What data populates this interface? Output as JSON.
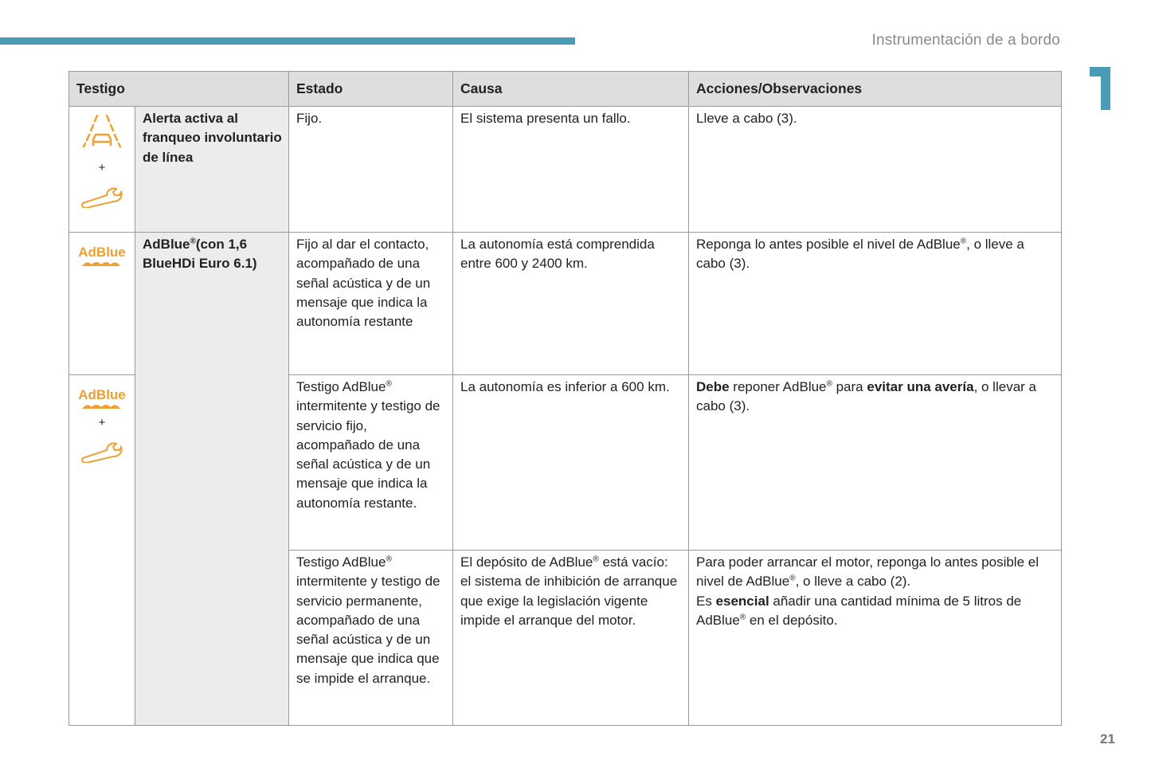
{
  "header": {
    "section_title": "Instrumentación de a bordo",
    "chapter_number": "1",
    "page_number": "21",
    "accent_color": "#4a9bb6",
    "icon_color": "#f0a030"
  },
  "table": {
    "columns": [
      "Testigo",
      "Estado",
      "Causa",
      "Acciones/Observaciones"
    ],
    "plus": "+",
    "reg": "®",
    "icons": {
      "adblue_label": "AdBlue",
      "lane": "lane-departure-icon",
      "wrench": "wrench-icon"
    },
    "row1": {
      "name": "Alerta activa al franqueo involuntario de línea",
      "estado": "Fijo.",
      "causa": "El sistema presenta un fallo.",
      "acciones": "Lleve a cabo (3)."
    },
    "adblue": {
      "name_a": "AdBlue",
      "name_b": "(con 1,6 BlueHDi Euro 6.1)"
    },
    "row2": {
      "estado": "Fijo al dar el contacto, acompañado de una señal acústica y de un mensaje que indica la autonomía restante",
      "causa": "La autonomía está comprendida entre 600 y 2400 km.",
      "acciones_a": "Reponga lo antes posible el nivel de AdBlue",
      "acciones_b": ", o lleve a cabo (3)."
    },
    "row3": {
      "estado_a": "Testigo AdBlue",
      "estado_b": " intermitente y testigo de servicio fijo, acompañado de una señal acústica y de un mensaje que indica la autonomía restante.",
      "causa": "La autonomía es inferior a 600 km.",
      "acc_1": "Debe",
      "acc_2": " reponer AdBlue",
      "acc_3": " para ",
      "acc_4": "evitar una avería",
      ",acc_5": "",
      "acc_5": ", o llevar a cabo (3)."
    },
    "row4": {
      "estado_a": "Testigo AdBlue",
      "estado_b": " intermitente y testigo de servicio permanente, acompañado de una señal acústica y de un mensaje que indica que se impide el arranque.",
      "causa_a": "El depósito de AdBlue",
      "causa_b": " está vacío: el sistema de inhibición de arranque que exige la legislación vigente impide el arranque del motor.",
      "acc_1": "Para poder arrancar el motor, reponga lo antes posible el nivel de AdBlue",
      "acc_2": ", o lleve a cabo (2).",
      "acc_3": "Es ",
      "acc_4": "esencial",
      "acc_5": " añadir una cantidad mínima de 5 litros de AdBlue",
      "acc_6": " en el depósito."
    }
  }
}
